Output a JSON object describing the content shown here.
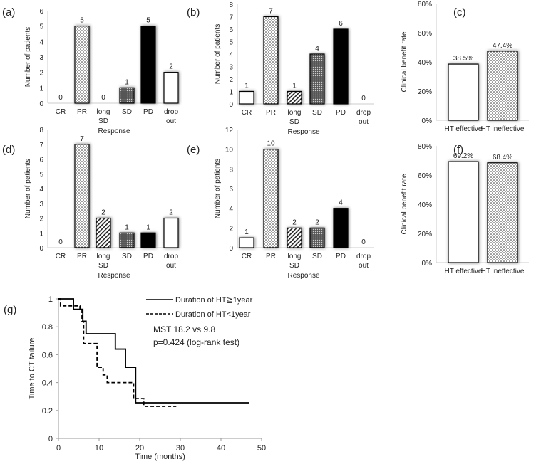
{
  "chart_data": [
    {
      "panel": "(a)",
      "type": "bar",
      "ylabel": "Number of patients",
      "xlabel": "Response",
      "ylim": [
        0,
        6
      ],
      "yticks": [
        0,
        1,
        2,
        3,
        4,
        5,
        6
      ],
      "categories": [
        "CR",
        "PR",
        "long SD",
        "SD",
        "PD",
        "drop out"
      ],
      "values": [
        0,
        5,
        0,
        1,
        5,
        2
      ]
    },
    {
      "panel": "(b)",
      "type": "bar",
      "ylabel": "Number of patients",
      "xlabel": "Response",
      "ylim": [
        0,
        8
      ],
      "yticks": [
        0,
        1,
        2,
        3,
        4,
        5,
        6,
        7,
        8
      ],
      "categories": [
        "CR",
        "PR",
        "long SD",
        "SD",
        "PD",
        "drop out"
      ],
      "values": [
        1,
        7,
        1,
        4,
        6,
        0
      ]
    },
    {
      "panel": "(c)",
      "type": "bar",
      "ylabel": "Clinical benefit rate",
      "ylim": [
        0,
        80
      ],
      "yticks": [
        "0%",
        "20%",
        "40%",
        "60%",
        "80%"
      ],
      "categories": [
        "HT effective",
        "HT ineffective"
      ],
      "values": [
        38.5,
        47.4
      ],
      "labels": [
        "38.5%",
        "47.4%"
      ]
    },
    {
      "panel": "(d)",
      "type": "bar",
      "ylabel": "Number of patients",
      "xlabel": "Response",
      "ylim": [
        0,
        8
      ],
      "yticks": [
        0,
        1,
        2,
        3,
        4,
        5,
        6,
        7,
        8
      ],
      "categories": [
        "CR",
        "PR",
        "long SD",
        "SD",
        "PD",
        "drop out"
      ],
      "values": [
        0,
        7,
        2,
        1,
        1,
        2
      ]
    },
    {
      "panel": "(e)",
      "type": "bar",
      "ylabel": "Number of patients",
      "xlabel": "Response",
      "ylim": [
        0,
        12
      ],
      "yticks": [
        0,
        2,
        4,
        6,
        8,
        10,
        12
      ],
      "categories": [
        "CR",
        "PR",
        "long SD",
        "SD",
        "PD",
        "drop out"
      ],
      "values": [
        1,
        10,
        2,
        2,
        4,
        0
      ]
    },
    {
      "panel": "(f)",
      "type": "bar",
      "ylabel": "Clinical benefit rate",
      "ylim": [
        0,
        80
      ],
      "yticks": [
        "0%",
        "20%",
        "40%",
        "60%",
        "80%"
      ],
      "categories": [
        "HT effective",
        "HT ineffective"
      ],
      "values": [
        69.2,
        68.4
      ],
      "labels": [
        "69.2%",
        "68.4%"
      ]
    },
    {
      "panel": "(g)",
      "type": "line",
      "xlabel": "Time (months)",
      "ylabel": "Time to CT failure",
      "xlim": [
        0,
        50
      ],
      "ylim": [
        0,
        1
      ],
      "xticks": [
        0,
        10,
        20,
        30,
        40,
        50
      ],
      "yticks": [
        "0",
        "0.2",
        "0.4",
        "0.6",
        "0.8",
        "1"
      ],
      "annotations": [
        "MST 18.2 vs 9.8",
        "p=0.424 (log-rank test)"
      ],
      "series": [
        {
          "name": "Duration of HT≧1year",
          "style": "solid",
          "x": [
            0,
            3.7,
            6,
            6.8,
            14,
            16.5,
            19,
            47
          ],
          "y": [
            1,
            0.925,
            0.84,
            0.75,
            0.64,
            0.51,
            0.255,
            0.255
          ]
        },
        {
          "name": "Duration of HT<1year",
          "style": "dashed",
          "x": [
            0,
            0.5,
            5.3,
            5.8,
            6.2,
            9.5,
            11,
            12,
            18.5,
            21,
            29
          ],
          "y": [
            1,
            0.95,
            0.925,
            0.84,
            0.68,
            0.51,
            0.455,
            0.4,
            0.285,
            0.23,
            0.23
          ]
        }
      ]
    }
  ]
}
